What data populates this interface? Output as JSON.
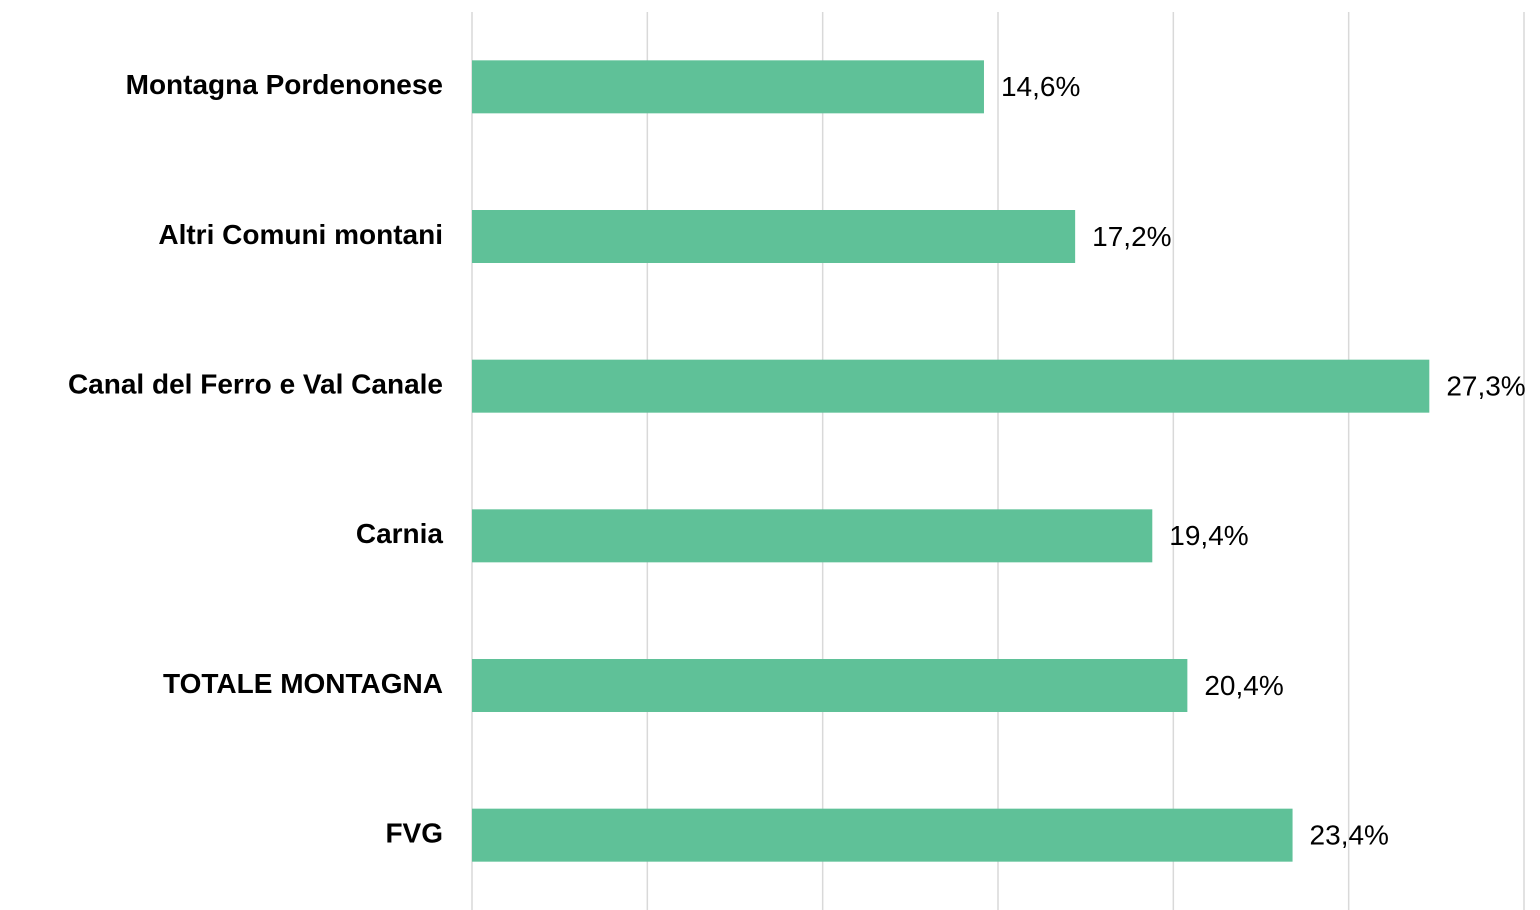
{
  "chart_data": {
    "type": "bar",
    "orientation": "horizontal",
    "categories": [
      "Montagna Pordenonese",
      "Altri Comuni montani",
      "Canal del Ferro e Val Canale",
      "Carnia",
      "TOTALE MONTAGNA",
      "FVG"
    ],
    "values": [
      14.6,
      17.2,
      27.3,
      19.4,
      20.4,
      23.4
    ],
    "value_labels": [
      "14,6%",
      "17,2%",
      "27,3%",
      "19,4%",
      "20,4%",
      "23,4%"
    ],
    "color": "#5fc198",
    "xlim": [
      0,
      30
    ],
    "xticks": [
      0,
      5,
      10,
      15,
      20,
      25,
      30
    ],
    "grid": true
  }
}
